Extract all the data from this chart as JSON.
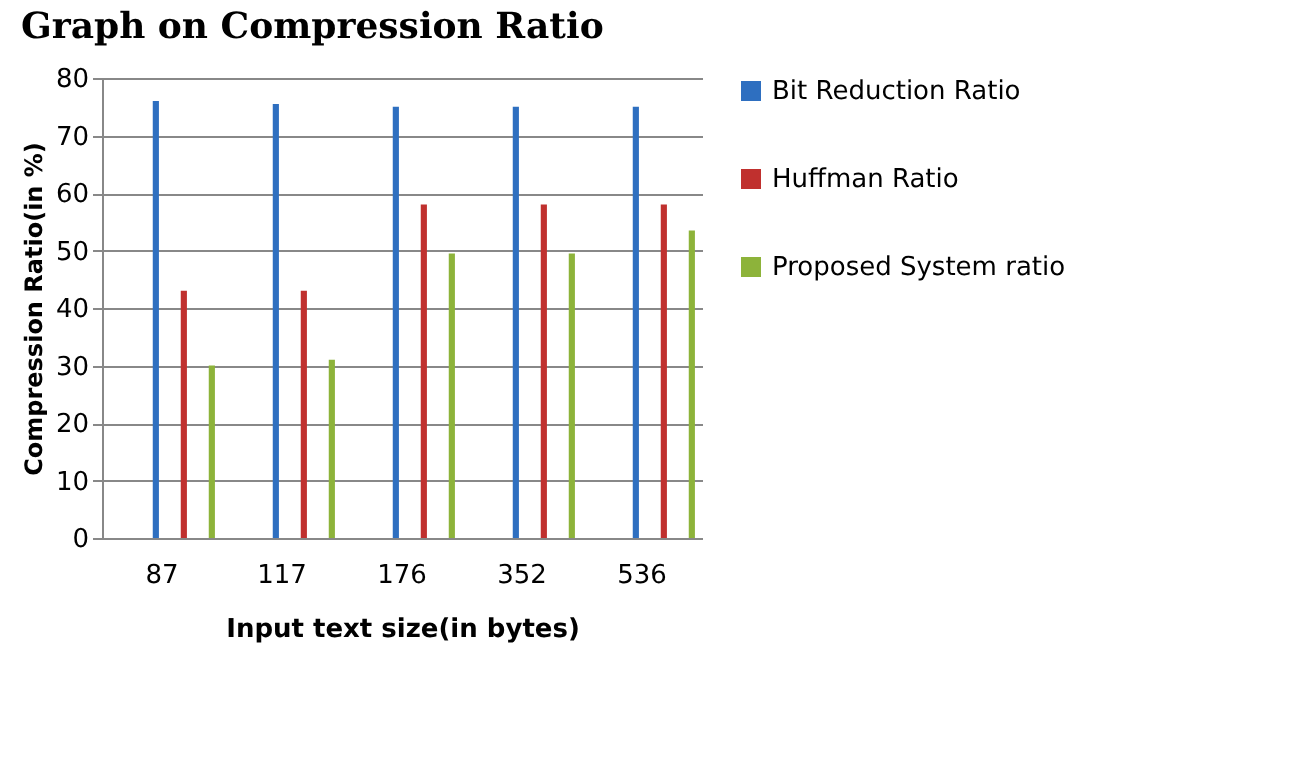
{
  "chart_data": {
    "type": "bar",
    "title": "Graph on Compression Ratio",
    "xlabel": "Input text size(in bytes)",
    "ylabel": "Compression Ratio(in %)",
    "categories": [
      "87",
      "117",
      "176",
      "352",
      "536"
    ],
    "series": [
      {
        "name": "Bit Reduction Ratio",
        "color": "#2e6fc0",
        "values": [
          76,
          75.5,
          75,
          75,
          75
        ]
      },
      {
        "name": "Huffman Ratio",
        "color": "#c0302e",
        "values": [
          43,
          43,
          58,
          58,
          58
        ]
      },
      {
        "name": "Proposed System ratio",
        "color": "#8db33a",
        "values": [
          30,
          31,
          49.5,
          49.5,
          53.5
        ]
      }
    ],
    "ylim": [
      0,
      80
    ],
    "yticks": [
      0,
      10,
      20,
      30,
      40,
      50,
      60,
      70,
      80
    ],
    "grid": "y",
    "legend": "right"
  }
}
